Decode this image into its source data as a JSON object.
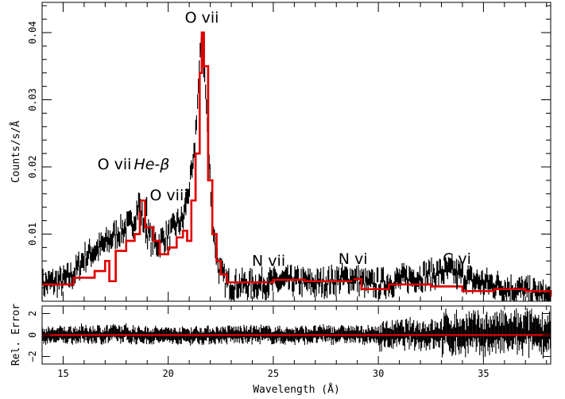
{
  "colors": {
    "data": "#000000",
    "model": "#e00000",
    "frame": "#000000",
    "background": "#ffffff"
  },
  "chart_data": [
    {
      "type": "line",
      "panel": "spectrum",
      "xlabel": "",
      "ylabel": "Counts/s/Å",
      "xlim": [
        14,
        38.2
      ],
      "ylim": [
        0,
        0.0445
      ],
      "x_ticks": [
        15,
        20,
        25,
        30,
        35
      ],
      "y_ticks": [
        0.01,
        0.02,
        0.03,
        0.04
      ],
      "y_tick_labels": [
        "0.01",
        "0.02",
        "0.03",
        "0.04"
      ],
      "annotations": [
        {
          "label": "O vii",
          "x": 21.6,
          "y": 0.0415,
          "marker": false
        },
        {
          "label": "O vii",
          "label_suffix": "He-β",
          "x": 18.63,
          "y": 0.0128,
          "marker": true
        },
        {
          "label": "O viii",
          "x": 18.97,
          "y": 0.0122,
          "marker": true
        },
        {
          "label": "N vii",
          "x": 24.78,
          "y": 0.001,
          "marker": true
        },
        {
          "label": "N vi",
          "x": 28.79,
          "y": 0.0013,
          "marker": true
        },
        {
          "label": "C vi",
          "x": 33.74,
          "y": 0.0013,
          "marker": true
        }
      ],
      "series": [
        {
          "style": "data-with-errorbars",
          "x": [
            14.0,
            14.5,
            15.0,
            15.5,
            16.0,
            16.5,
            17.0,
            17.5,
            18.0,
            18.3,
            18.6,
            18.9,
            19.2,
            19.5,
            19.8,
            20.1,
            20.4,
            20.7,
            21.0,
            21.2,
            21.4,
            21.6,
            21.8,
            22.0,
            22.2,
            22.4,
            22.7,
            23.0,
            24.0,
            25.0,
            26.0,
            27.0,
            28.0,
            28.8,
            29.5,
            30.5,
            31.5,
            32.5,
            33.5,
            34.5,
            35.5,
            36.5,
            37.5,
            38.2
          ],
          "y": [
            0.0025,
            0.0028,
            0.003,
            0.004,
            0.0065,
            0.0075,
            0.0085,
            0.01,
            0.011,
            0.0115,
            0.0145,
            0.011,
            0.009,
            0.0085,
            0.0095,
            0.01,
            0.0115,
            0.012,
            0.017,
            0.02,
            0.03,
            0.04,
            0.03,
            0.018,
            0.009,
            0.005,
            0.003,
            0.0025,
            0.0025,
            0.0028,
            0.003,
            0.0026,
            0.0032,
            0.0035,
            0.0025,
            0.0028,
            0.0035,
            0.004,
            0.0045,
            0.003,
            0.0025,
            0.0018,
            0.0012,
            0.0005
          ],
          "err": 0.0022
        },
        {
          "style": "model-step",
          "x": [
            14.0,
            15.3,
            15.5,
            16.5,
            17.0,
            17.2,
            17.5,
            18.0,
            18.4,
            18.65,
            18.9,
            19.3,
            19.6,
            20.0,
            20.4,
            20.7,
            20.9,
            21.1,
            21.3,
            21.5,
            21.6,
            21.7,
            21.9,
            22.1,
            22.3,
            22.5,
            22.8,
            24.0,
            25.0,
            26.5,
            28.0,
            28.8,
            29.2,
            30.5,
            31.5,
            32.5,
            33.5,
            34.0,
            35.5,
            37.0,
            38.2
          ],
          "y": [
            0.0025,
            0.0025,
            0.0035,
            0.0045,
            0.006,
            0.003,
            0.0075,
            0.009,
            0.01,
            0.015,
            0.011,
            0.009,
            0.007,
            0.008,
            0.0095,
            0.0105,
            0.009,
            0.015,
            0.022,
            0.034,
            0.04,
            0.035,
            0.018,
            0.01,
            0.006,
            0.004,
            0.0028,
            0.0028,
            0.0032,
            0.003,
            0.003,
            0.0033,
            0.0018,
            0.0025,
            0.0025,
            0.0022,
            0.0022,
            0.0015,
            0.0018,
            0.0015,
            0.0007
          ]
        }
      ]
    },
    {
      "type": "line",
      "panel": "residuals",
      "xlabel": "Wavelength (Å)",
      "ylabel": "Rel. Error",
      "xlim": [
        14,
        38.2
      ],
      "ylim": [
        -2.7,
        2.7
      ],
      "x_ticks": [
        15,
        20,
        25,
        30,
        35
      ],
      "x_tick_labels": [
        "15",
        "20",
        "25",
        "30",
        "35"
      ],
      "y_ticks": [
        -2,
        0,
        2
      ],
      "y_tick_labels": [
        "−2",
        "0",
        "2"
      ],
      "series": [
        {
          "style": "model-zero-line",
          "y": 0
        },
        {
          "style": "residual-errorbars",
          "x": [
            14.0,
            16.0,
            18.0,
            20.0,
            22.0,
            24.0,
            26.0,
            28.0,
            30.0,
            32.0,
            34.0,
            36.0,
            37.0,
            38.2
          ],
          "y": [
            -0.2,
            0.3,
            0.4,
            -0.3,
            0.0,
            0.3,
            -0.2,
            0.4,
            -0.3,
            0.6,
            0.7,
            0.8,
            1.0,
            0.8
          ]
        }
      ]
    }
  ]
}
